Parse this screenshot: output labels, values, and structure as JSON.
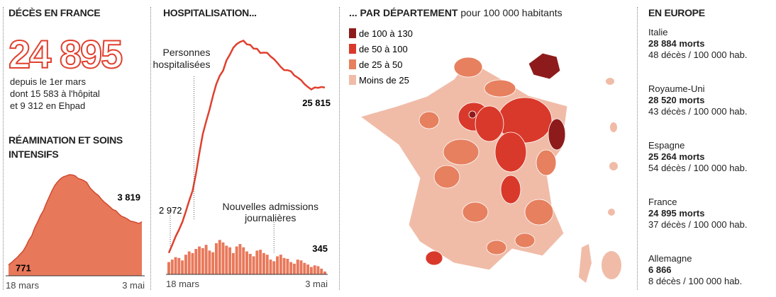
{
  "deaths_panel": {
    "title": "DÉCÈS EN FRANCE",
    "total": "24 895",
    "lines": [
      "depuis le 1er mars",
      "dont 15 583 à l'hôpital",
      "et 9 312 en Ehpad"
    ],
    "section_title": "RÉAMINATION ET SOINS INTENSIFS"
  },
  "hosp_panel": {
    "title": "HOSPITALISATION..."
  },
  "chart_data": [
    {
      "type": "area",
      "color": "#e8785a",
      "categories": [
        "18 mars",
        null,
        null,
        null,
        null,
        null,
        null,
        null,
        null,
        null,
        null,
        null,
        null,
        null,
        null,
        null,
        null,
        null,
        null,
        null,
        null,
        null,
        null,
        null,
        null,
        null,
        null,
        null,
        null,
        null,
        null,
        null,
        null,
        null,
        null,
        null,
        null,
        null,
        null,
        null,
        null,
        null,
        null,
        null,
        null,
        null,
        "3 mai"
      ],
      "values": [
        771,
        931,
        1122,
        1297,
        1525,
        1746,
        2082,
        2516,
        2827,
        3375,
        3787,
        4236,
        4592,
        5107,
        5565,
        6017,
        6399,
        6662,
        6872,
        7004,
        7072,
        7148,
        7131,
        7066,
        6884,
        6821,
        6730,
        6599,
        6248,
        6027,
        5833,
        5683,
        5433,
        5218,
        5053,
        4870,
        4682,
        4608,
        4387,
        4207,
        4128,
        4019,
        3878,
        3827,
        3770,
        3696,
        3819
      ],
      "value_labels": [
        "771",
        null,
        null,
        null,
        null,
        null,
        null,
        null,
        null,
        null,
        null,
        null,
        null,
        null,
        null,
        null,
        null,
        null,
        null,
        null,
        null,
        null,
        null,
        null,
        null,
        null,
        null,
        null,
        null,
        null,
        null,
        null,
        null,
        null,
        null,
        null,
        null,
        null,
        null,
        null,
        null,
        null,
        null,
        null,
        null,
        null,
        "3 819"
      ],
      "ylim": [
        0,
        8000
      ]
    },
    {
      "type": "line",
      "categories": [
        "18 mars",
        null,
        null,
        null,
        null,
        null,
        null,
        null,
        null,
        null,
        null,
        null,
        null,
        null,
        null,
        null,
        null,
        null,
        null,
        null,
        null,
        null,
        null,
        null,
        null,
        null,
        null,
        null,
        null,
        null,
        null,
        null,
        null,
        null,
        null,
        null,
        null,
        null,
        null,
        null,
        null,
        null,
        null,
        null,
        null,
        null,
        "3 mai"
      ],
      "ylim": [
        0,
        34000
      ],
      "y2lim": [
        0,
        30000
      ],
      "series": [
        {
          "name": "Personnes hospitalisées",
          "color": "#e0402e",
          "values": [
            2972,
            4073,
            5226,
            6172,
            7240,
            8673,
            10176,
            11539,
            13904,
            16732,
            19354,
            21120,
            22757,
            24639,
            26293,
            27432,
            28143,
            29569,
            30369,
            31305,
            31815,
            32113,
            32292,
            31779,
            31716,
            31190,
            31172,
            30584,
            30639,
            30610,
            30106,
            29741,
            29219,
            28660,
            28222,
            28217,
            28055,
            27484,
            27186,
            26834,
            26283,
            25887,
            25548,
            25827,
            25775,
            25887,
            25815
          ],
          "value_labels": [
            "2 972",
            null,
            null,
            null,
            null,
            null,
            null,
            null,
            null,
            null,
            null,
            null,
            null,
            null,
            null,
            null,
            null,
            null,
            null,
            null,
            null,
            null,
            null,
            null,
            null,
            null,
            null,
            null,
            null,
            null,
            null,
            null,
            null,
            null,
            null,
            null,
            null,
            null,
            null,
            null,
            null,
            null,
            null,
            null,
            null,
            null,
            "25 815"
          ]
        },
        {
          "name": "Nouvelles admissions journalières",
          "color": "#e8785a",
          "type": "bar",
          "axis": "y2",
          "values": [
            1500,
            1800,
            2100,
            2000,
            1700,
            2400,
            2800,
            2600,
            3100,
            3400,
            3200,
            3600,
            2900,
            2700,
            3800,
            4200,
            3900,
            3500,
            3300,
            2600,
            3400,
            3700,
            3300,
            2800,
            2500,
            2200,
            2900,
            3000,
            2600,
            2400,
            1800,
            1600,
            2200,
            2400,
            2000,
            1900,
            1500,
            1300,
            1800,
            1700,
            1400,
            1200,
            900,
            1100,
            1000,
            700,
            345
          ]
        }
      ]
    }
  ],
  "map": {
    "title": "... PAR DÉPARTEMENT",
    "subtitle": "pour 100 000 habitants",
    "legend": [
      {
        "label": "de 100 à 130",
        "color": "#8e1b1b"
      },
      {
        "label": "de 50 à 100",
        "color": "#d9392b"
      },
      {
        "label": "de 25 à 50",
        "color": "#e6805f"
      },
      {
        "label": "Moins de 25",
        "color": "#f0bca8"
      }
    ]
  },
  "europe": {
    "title": "EN EUROPE",
    "countries": [
      {
        "name": "Italie",
        "deaths": "28 884 morts",
        "rate": "48 décès / 100 000 hab."
      },
      {
        "name": "Royaume-Uni",
        "deaths": "28 520 morts",
        "rate": "43 décès / 100 000 hab."
      },
      {
        "name": "Espagne",
        "deaths": "25 264 morts",
        "rate": "54 décès / 100 000 hab."
      },
      {
        "name": "France",
        "deaths": "24 895 morts",
        "rate": "37 décès / 100 000 hab."
      },
      {
        "name": "Allemagne",
        "deaths": "6 866",
        "rate": "8 décès / 100 000 hab."
      }
    ]
  }
}
